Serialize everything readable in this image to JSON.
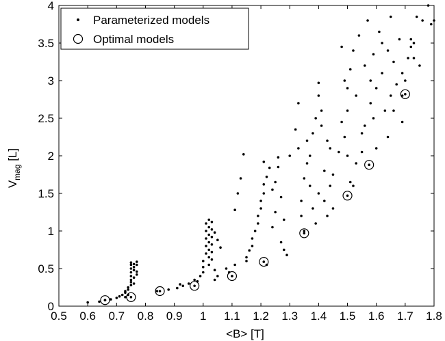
{
  "chart_data": {
    "type": "scatter",
    "xlabel": "<B> [T]",
    "ylabel": {
      "main": "V",
      "sub": "mag",
      "unit": " [L]"
    },
    "xlim": [
      0.5,
      1.8
    ],
    "ylim": [
      0,
      4
    ],
    "xticks": [
      "0.5",
      "0.6",
      "0.7",
      "0.8",
      "0.9",
      "1",
      "1.1",
      "1.2",
      "1.3",
      "1.4",
      "1.5",
      "1.6",
      "1.7",
      "1.8"
    ],
    "yticks": [
      "0",
      "0.5",
      "1",
      "1.5",
      "2",
      "2.5",
      "3",
      "3.5",
      "4"
    ],
    "grid": false,
    "legend_position": "top-left",
    "legend": [
      "Parameterized models",
      "Optimal models"
    ],
    "series": [
      {
        "name": "Parameterized models",
        "marker": "dot",
        "points": [
          [
            0.6,
            0.05
          ],
          [
            0.64,
            0.06
          ],
          [
            0.66,
            0.08
          ],
          [
            0.68,
            0.09
          ],
          [
            0.7,
            0.11
          ],
          [
            0.71,
            0.13
          ],
          [
            0.72,
            0.15
          ],
          [
            0.73,
            0.18
          ],
          [
            0.73,
            0.2
          ],
          [
            0.74,
            0.22
          ],
          [
            0.74,
            0.25
          ],
          [
            0.75,
            0.28
          ],
          [
            0.75,
            0.32
          ],
          [
            0.75,
            0.35
          ],
          [
            0.75,
            0.4
          ],
          [
            0.75,
            0.45
          ],
          [
            0.75,
            0.5
          ],
          [
            0.75,
            0.55
          ],
          [
            0.75,
            0.58
          ],
          [
            0.76,
            0.3
          ],
          [
            0.76,
            0.38
          ],
          [
            0.76,
            0.48
          ],
          [
            0.76,
            0.52
          ],
          [
            0.76,
            0.56
          ],
          [
            0.77,
            0.42
          ],
          [
            0.77,
            0.46
          ],
          [
            0.77,
            0.55
          ],
          [
            0.77,
            0.59
          ],
          [
            0.74,
            0.15
          ],
          [
            0.73,
            0.12
          ],
          [
            0.84,
            0.2
          ],
          [
            0.88,
            0.22
          ],
          [
            0.91,
            0.24
          ],
          [
            0.92,
            0.29
          ],
          [
            0.93,
            0.27
          ],
          [
            0.95,
            0.3
          ],
          [
            0.97,
            0.35
          ],
          [
            0.98,
            0.33
          ],
          [
            0.99,
            0.4
          ],
          [
            1.0,
            0.45
          ],
          [
            1.0,
            0.52
          ],
          [
            1.0,
            0.6
          ],
          [
            1.01,
            0.7
          ],
          [
            1.01,
            0.8
          ],
          [
            1.01,
            0.9
          ],
          [
            1.01,
            1.0
          ],
          [
            1.01,
            1.1
          ],
          [
            1.02,
            0.55
          ],
          [
            1.02,
            0.65
          ],
          [
            1.02,
            0.75
          ],
          [
            1.02,
            0.85
          ],
          [
            1.02,
            0.95
          ],
          [
            1.02,
            1.05
          ],
          [
            1.02,
            1.15
          ],
          [
            1.03,
            0.62
          ],
          [
            1.03,
            0.72
          ],
          [
            1.03,
            0.82
          ],
          [
            1.03,
            0.92
          ],
          [
            1.03,
            1.02
          ],
          [
            1.03,
            1.12
          ],
          [
            1.04,
            0.35
          ],
          [
            1.04,
            0.48
          ],
          [
            1.04,
            0.98
          ],
          [
            1.05,
            0.4
          ],
          [
            1.05,
            0.88
          ],
          [
            1.06,
            0.78
          ],
          [
            1.08,
            0.5
          ],
          [
            1.09,
            0.45
          ],
          [
            1.1,
            0.4
          ],
          [
            1.11,
            0.55
          ],
          [
            1.11,
            1.28
          ],
          [
            1.12,
            1.5
          ],
          [
            1.13,
            1.7
          ],
          [
            1.14,
            2.02
          ],
          [
            1.15,
            0.6
          ],
          [
            1.15,
            0.65
          ],
          [
            1.16,
            0.74
          ],
          [
            1.17,
            0.8
          ],
          [
            1.17,
            0.9
          ],
          [
            1.18,
            1.0
          ],
          [
            1.19,
            1.1
          ],
          [
            1.19,
            1.2
          ],
          [
            1.2,
            1.3
          ],
          [
            1.2,
            1.4
          ],
          [
            1.21,
            1.5
          ],
          [
            1.21,
            1.62
          ],
          [
            1.21,
            1.92
          ],
          [
            1.22,
            0.55
          ],
          [
            1.22,
            1.72
          ],
          [
            1.23,
            1.84
          ],
          [
            1.24,
            1.05
          ],
          [
            1.24,
            1.55
          ],
          [
            1.25,
            1.25
          ],
          [
            1.25,
            1.65
          ],
          [
            1.26,
            1.85
          ],
          [
            1.26,
            1.98
          ],
          [
            1.27,
            0.85
          ],
          [
            1.27,
            1.45
          ],
          [
            1.28,
            0.75
          ],
          [
            1.28,
            1.15
          ],
          [
            1.29,
            0.68
          ],
          [
            1.3,
            2.0
          ],
          [
            1.32,
            2.35
          ],
          [
            1.33,
            2.7
          ],
          [
            1.33,
            2.1
          ],
          [
            1.34,
            1.4
          ],
          [
            1.34,
            1.2
          ],
          [
            1.35,
            1.0
          ],
          [
            1.35,
            1.7
          ],
          [
            1.36,
            1.9
          ],
          [
            1.36,
            2.2
          ],
          [
            1.37,
            2.0
          ],
          [
            1.37,
            1.6
          ],
          [
            1.38,
            2.3
          ],
          [
            1.38,
            1.3
          ],
          [
            1.39,
            2.5
          ],
          [
            1.39,
            1.1
          ],
          [
            1.4,
            2.8
          ],
          [
            1.4,
            2.97
          ],
          [
            1.4,
            1.5
          ],
          [
            1.41,
            2.6
          ],
          [
            1.41,
            2.4
          ],
          [
            1.42,
            1.8
          ],
          [
            1.42,
            1.4
          ],
          [
            1.43,
            2.2
          ],
          [
            1.43,
            1.2
          ],
          [
            1.44,
            2.1
          ],
          [
            1.44,
            1.6
          ],
          [
            1.45,
            1.75
          ],
          [
            1.45,
            1.3
          ],
          [
            1.47,
            2.05
          ],
          [
            1.48,
            3.45
          ],
          [
            1.48,
            2.45
          ],
          [
            1.49,
            3.0
          ],
          [
            1.49,
            2.25
          ],
          [
            1.5,
            2.9
          ],
          [
            1.5,
            2.6
          ],
          [
            1.5,
            2.0
          ],
          [
            1.51,
            1.65
          ],
          [
            1.51,
            3.15
          ],
          [
            1.52,
            1.6
          ],
          [
            1.52,
            3.4
          ],
          [
            1.53,
            1.9
          ],
          [
            1.53,
            2.8
          ],
          [
            1.54,
            3.6
          ],
          [
            1.55,
            2.3
          ],
          [
            1.55,
            2.05
          ],
          [
            1.56,
            2.4
          ],
          [
            1.56,
            3.2
          ],
          [
            1.57,
            3.8
          ],
          [
            1.58,
            3.0
          ],
          [
            1.58,
            2.7
          ],
          [
            1.59,
            2.5
          ],
          [
            1.59,
            3.35
          ],
          [
            1.6,
            2.9
          ],
          [
            1.6,
            2.1
          ],
          [
            1.61,
            3.65
          ],
          [
            1.62,
            3.1
          ],
          [
            1.62,
            3.5
          ],
          [
            1.63,
            2.6
          ],
          [
            1.64,
            3.4
          ],
          [
            1.65,
            3.85
          ],
          [
            1.66,
            2.6
          ],
          [
            1.66,
            3.25
          ],
          [
            1.67,
            2.95
          ],
          [
            1.68,
            3.55
          ],
          [
            1.69,
            2.8
          ],
          [
            1.69,
            3.1
          ],
          [
            1.7,
            3.0
          ],
          [
            1.71,
            3.3
          ],
          [
            1.72,
            3.55
          ],
          [
            1.72,
            3.45
          ],
          [
            1.73,
            3.5
          ],
          [
            1.73,
            3.3
          ],
          [
            1.74,
            3.85
          ],
          [
            1.75,
            3.2
          ],
          [
            1.76,
            3.8
          ],
          [
            1.78,
            4.0
          ],
          [
            1.79,
            3.75
          ],
          [
            1.8,
            3.8
          ],
          [
            1.69,
            2.45
          ],
          [
            1.65,
            2.8
          ],
          [
            1.64,
            2.25
          ]
        ]
      },
      {
        "name": "Optimal models",
        "marker": "circle",
        "points": [
          [
            0.66,
            0.08
          ],
          [
            0.75,
            0.12
          ],
          [
            0.85,
            0.2
          ],
          [
            0.97,
            0.27
          ],
          [
            1.1,
            0.4
          ],
          [
            1.21,
            0.59
          ],
          [
            1.35,
            0.97
          ],
          [
            1.5,
            1.47
          ],
          [
            1.575,
            1.88
          ],
          [
            1.7,
            2.82
          ]
        ]
      }
    ]
  }
}
